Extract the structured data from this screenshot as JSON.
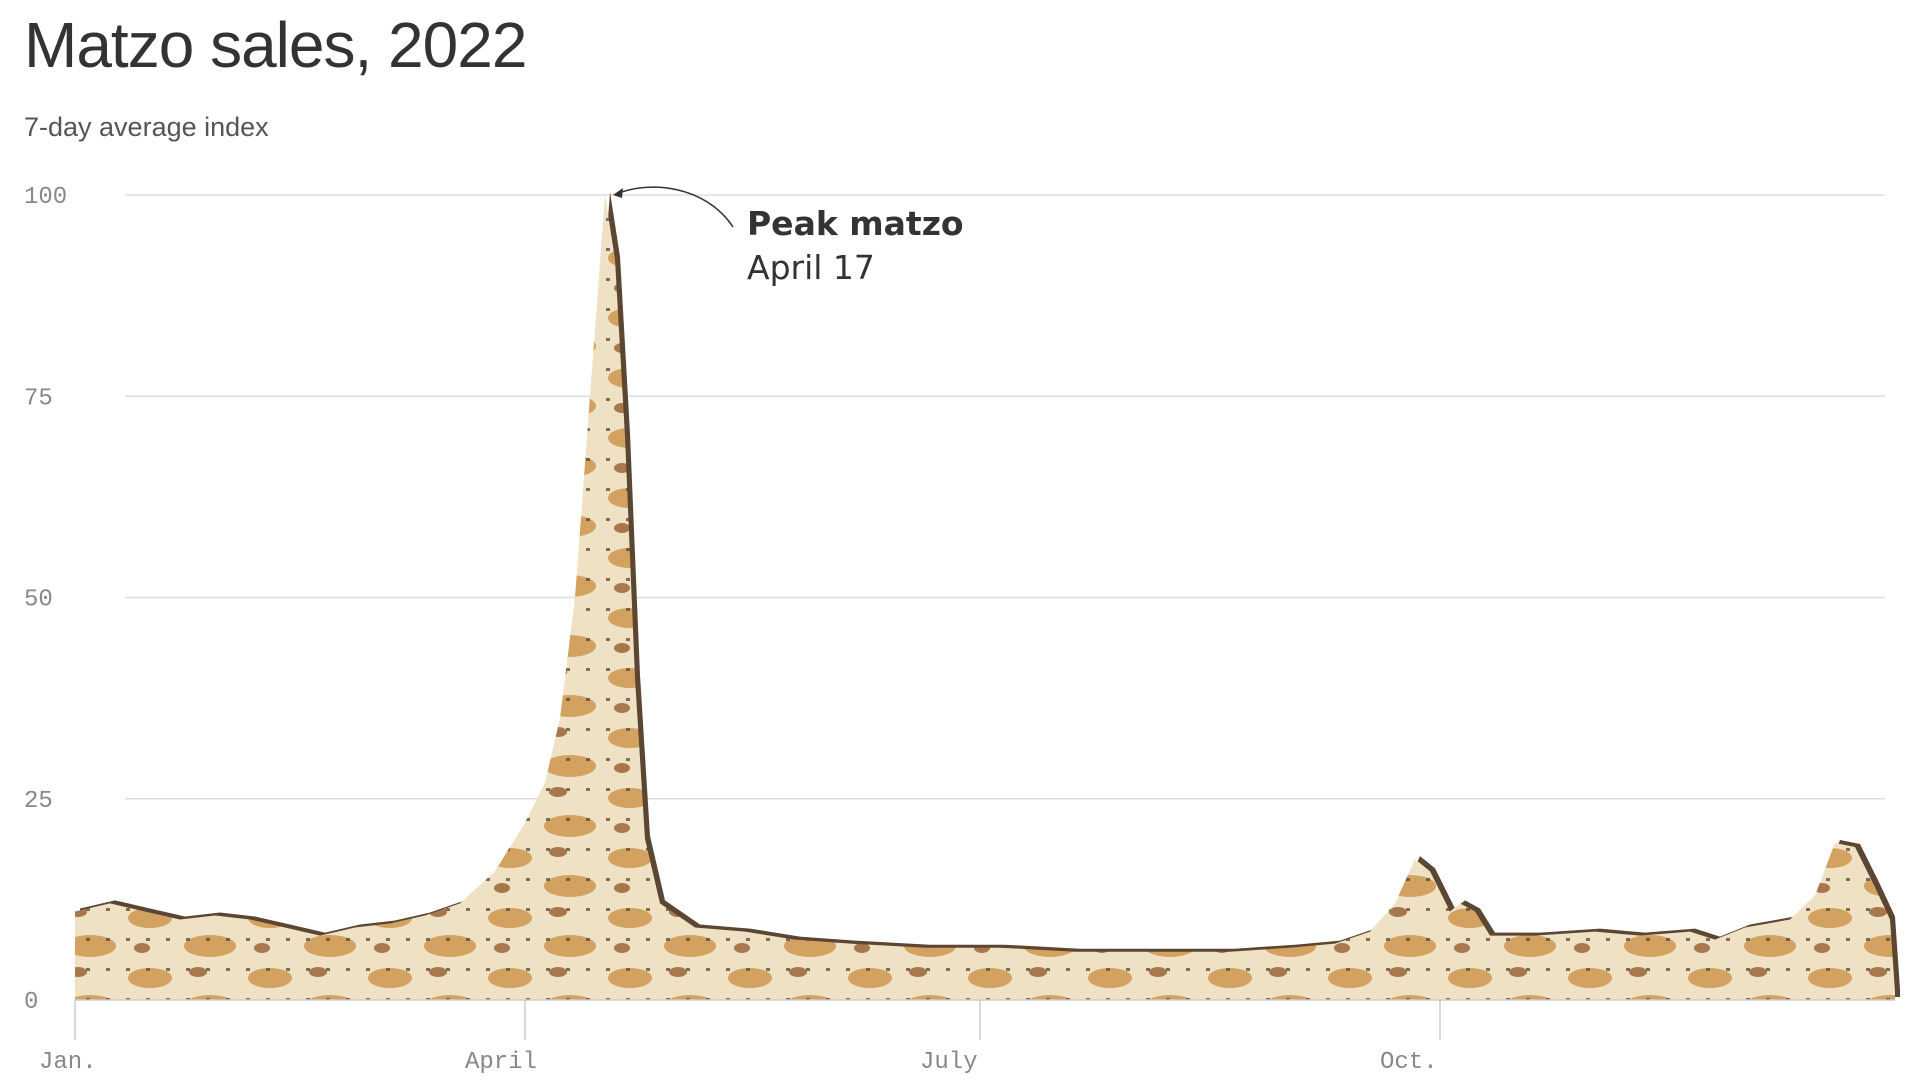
{
  "chart_data": {
    "type": "area",
    "title": "Matzo sales, 2022",
    "subtitle": "7-day average index",
    "xlabel": "",
    "ylabel": "",
    "ylim": [
      0,
      100
    ],
    "xlim": [
      "2022-01-01",
      "2022-12-31"
    ],
    "yticks": [
      0,
      25,
      50,
      75,
      100
    ],
    "xticks": [
      {
        "date": "2022-01-01",
        "label": "Jan."
      },
      {
        "date": "2022-04-01",
        "label": "April"
      },
      {
        "date": "2022-07-01",
        "label": "July"
      },
      {
        "date": "2022-10-01",
        "label": "Oct."
      }
    ],
    "grid": true,
    "fill_texture": "matzo",
    "colors": {
      "matzo_light": "#efe2c4",
      "matzo_toast": "#c98a3e",
      "matzo_dark": "#8a4a1c",
      "outline": "#5a4632",
      "grid": "#dddddd"
    },
    "series": [
      {
        "points": [
          [
            "2022-01-01",
            11
          ],
          [
            "2022-01-08",
            12
          ],
          [
            "2022-01-15",
            11
          ],
          [
            "2022-01-22",
            10
          ],
          [
            "2022-01-29",
            10.5
          ],
          [
            "2022-02-05",
            10
          ],
          [
            "2022-02-12",
            9
          ],
          [
            "2022-02-19",
            8
          ],
          [
            "2022-02-26",
            9
          ],
          [
            "2022-03-05",
            9.5
          ],
          [
            "2022-03-12",
            10.5
          ],
          [
            "2022-03-19",
            12
          ],
          [
            "2022-03-26",
            16
          ],
          [
            "2022-04-01",
            22
          ],
          [
            "2022-04-05",
            27
          ],
          [
            "2022-04-08",
            35
          ],
          [
            "2022-04-11",
            50
          ],
          [
            "2022-04-14",
            75
          ],
          [
            "2022-04-17",
            100
          ],
          [
            "2022-04-19",
            92
          ],
          [
            "2022-04-21",
            70
          ],
          [
            "2022-04-23",
            40
          ],
          [
            "2022-04-25",
            20
          ],
          [
            "2022-04-28",
            12
          ],
          [
            "2022-05-05",
            9
          ],
          [
            "2022-05-15",
            8.5
          ],
          [
            "2022-05-25",
            7.5
          ],
          [
            "2022-06-05",
            7
          ],
          [
            "2022-06-20",
            6.5
          ],
          [
            "2022-07-05",
            6.5
          ],
          [
            "2022-07-20",
            6
          ],
          [
            "2022-08-05",
            6
          ],
          [
            "2022-08-20",
            6
          ],
          [
            "2022-09-01",
            6.5
          ],
          [
            "2022-09-10",
            7
          ],
          [
            "2022-09-17",
            8.5
          ],
          [
            "2022-09-22",
            12
          ],
          [
            "2022-09-26",
            17.5
          ],
          [
            "2022-09-29",
            16
          ],
          [
            "2022-10-03",
            11
          ],
          [
            "2022-10-05",
            12
          ],
          [
            "2022-10-08",
            11
          ],
          [
            "2022-10-11",
            8
          ],
          [
            "2022-10-20",
            8
          ],
          [
            "2022-11-01",
            8.5
          ],
          [
            "2022-11-10",
            8
          ],
          [
            "2022-11-20",
            8.5
          ],
          [
            "2022-11-25",
            7.5
          ],
          [
            "2022-12-01",
            9
          ],
          [
            "2022-12-10",
            10
          ],
          [
            "2022-12-15",
            13
          ],
          [
            "2022-12-19",
            19.5
          ],
          [
            "2022-12-23",
            19
          ],
          [
            "2022-12-27",
            14
          ],
          [
            "2022-12-30",
            10
          ],
          [
            "2022-12-31",
            1
          ]
        ]
      }
    ],
    "annotations": [
      {
        "point": [
          "2022-04-17",
          100
        ],
        "title": "Peak matzo",
        "text": "April 17"
      }
    ]
  }
}
